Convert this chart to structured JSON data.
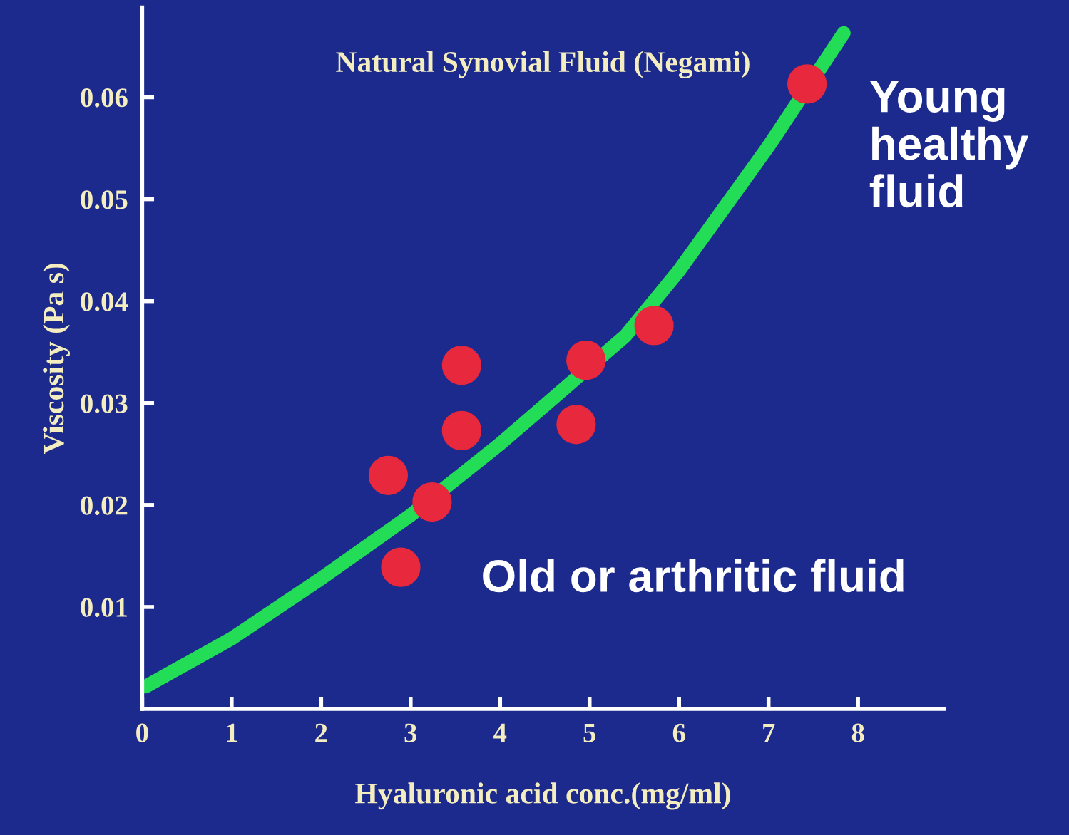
{
  "chart_data": {
    "type": "scatter",
    "title": "Natural Synovial Fluid (Negami)",
    "xlabel": "Hyaluronic acid conc.(mg/ml)",
    "ylabel": "Viscosity (Pa s)",
    "series": [
      {
        "color": "#e8283c",
        "marker": "circle",
        "x": [
          2.75,
          2.89,
          3.24,
          3.57,
          3.57,
          4.85,
          4.96,
          5.72,
          7.43
        ],
        "values": [
          0.0229,
          0.0139,
          0.0203,
          0.0337,
          0.0273,
          0.0279,
          0.0342,
          0.0376,
          0.0613
        ]
      },
      {
        "type": "line",
        "color": "#22dd55",
        "x": [
          0.04,
          1,
          2,
          3,
          4,
          5.4,
          6,
          7,
          7.84
        ],
        "values": [
          0.0022,
          0.0069,
          0.0128,
          0.019,
          0.026,
          0.0366,
          0.043,
          0.0552,
          0.0663
        ]
      }
    ],
    "xlim": [
      0,
      8.96
    ],
    "ylim": [
      0,
      0.0688
    ],
    "xticks": [
      0,
      1,
      2,
      3,
      4,
      5,
      6,
      7,
      8
    ],
    "yticks": [
      0.01,
      0.02,
      0.03,
      0.04,
      0.05,
      0.06
    ],
    "grid": false,
    "legend": false,
    "annotations": [
      "Young\nhealthy\nfluid",
      "Old or arthritic fluid"
    ]
  }
}
